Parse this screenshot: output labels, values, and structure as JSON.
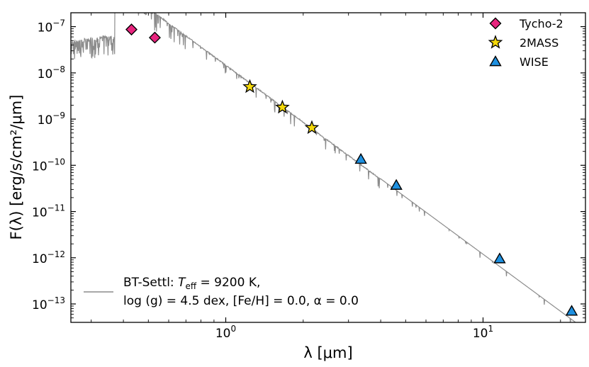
{
  "chart_data": {
    "type": "scatter",
    "title": "",
    "xlabel": "λ [μm]",
    "ylabel": "F(λ) [erg/s/cm²/μm]",
    "xscale": "log",
    "yscale": "log",
    "xlim": [
      0.25,
      25
    ],
    "ylim": [
      4e-14,
      2e-07
    ],
    "x_ticks": [
      {
        "value": 1,
        "base": "10",
        "exp": "0"
      },
      {
        "value": 10,
        "base": "10",
        "exp": "1"
      }
    ],
    "y_ticks": [
      {
        "value": 1e-07,
        "base": "10",
        "exp": "−7"
      },
      {
        "value": 1e-08,
        "base": "10",
        "exp": "−8"
      },
      {
        "value": 1e-09,
        "base": "10",
        "exp": "−9"
      },
      {
        "value": 1e-10,
        "base": "10",
        "exp": "−10"
      },
      {
        "value": 1e-11,
        "base": "10",
        "exp": "−11"
      },
      {
        "value": 1e-12,
        "base": "10",
        "exp": "−12"
      },
      {
        "value": 1e-13,
        "base": "10",
        "exp": "−13"
      }
    ],
    "series": [
      {
        "name": "Tycho-2",
        "marker": "diamond",
        "color": "#e8247e",
        "x": [
          0.43,
          0.53
        ],
        "y": [
          8.7e-08,
          5.8e-08
        ]
      },
      {
        "name": "2MASS",
        "marker": "star",
        "color": "#f5d90a",
        "x": [
          1.24,
          1.66,
          2.16
        ],
        "y": [
          5e-09,
          1.8e-09,
          6.5e-10
        ]
      },
      {
        "name": "WISE",
        "marker": "triangle",
        "color": "#1e90e0",
        "x": [
          3.35,
          4.6,
          11.6,
          22.1
        ],
        "y": [
          1.35e-10,
          3.7e-11,
          9.5e-13,
          7e-14
        ]
      }
    ],
    "model": {
      "line1_prefix": "BT-Settl: ",
      "teff_symbol": "T",
      "teff_sub": "eff",
      "teff_value": " = 9200 K,",
      "line2": "log (g) = 4.5 dex, [Fe/H] = 0.0, α = 0.0",
      "color": "#8c8c8c",
      "anchor_x": 1.0,
      "anchor_y": 1.5e-08,
      "slope": -4.1,
      "uv_level": 6e-08,
      "balmer_jump_um": 0.37
    },
    "legend_position": "top-right"
  }
}
